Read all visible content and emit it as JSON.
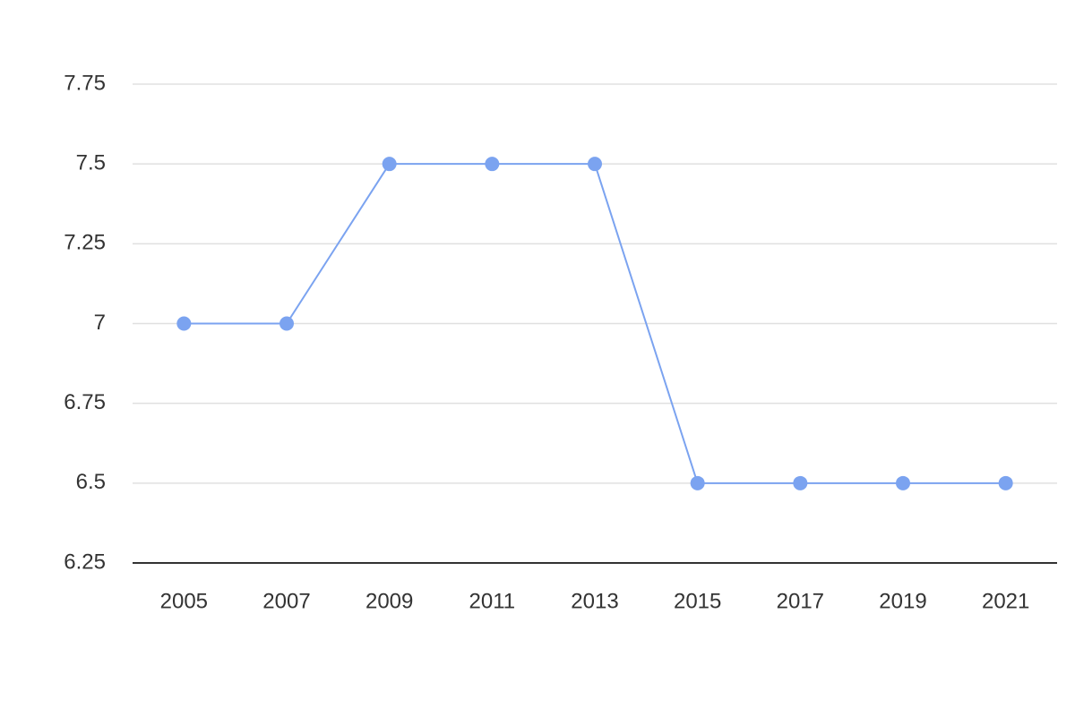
{
  "chart_data": {
    "type": "line",
    "x": [
      2005,
      2007,
      2009,
      2011,
      2013,
      2015,
      2017,
      2019,
      2021
    ],
    "series": [
      {
        "color": "#7ba3f0",
        "values": [
          7,
          7,
          7.5,
          7.5,
          7.5,
          6.5,
          6.5,
          6.5,
          6.5
        ]
      }
    ],
    "xlim": [
      2004,
      2022
    ],
    "xticks": [
      2005,
      2007,
      2009,
      2011,
      2013,
      2015,
      2017,
      2019,
      2021
    ],
    "ylim": [
      6.25,
      7.75
    ],
    "yticks": [
      6.25,
      6.5,
      6.75,
      7,
      7.25,
      7.5,
      7.75
    ],
    "grid": true
  }
}
